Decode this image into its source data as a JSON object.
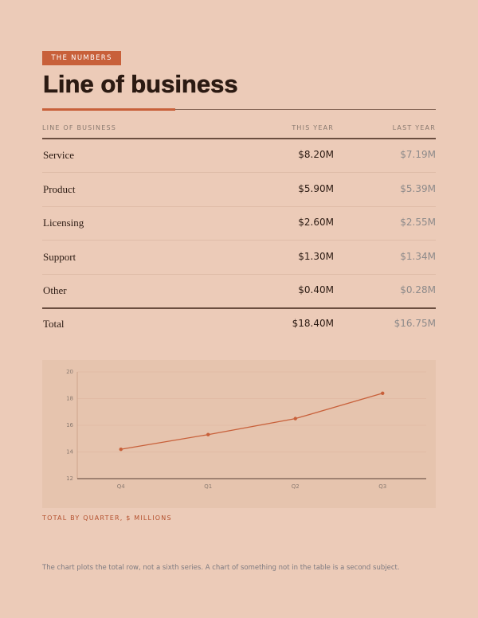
{
  "header": {
    "tag": "THE NUMBERS",
    "title": "Line of business"
  },
  "table": {
    "columns": [
      "LINE OF BUSINESS",
      "THIS YEAR",
      "LAST YEAR"
    ],
    "rows": [
      [
        "Service",
        "$8.20M",
        "$7.19M"
      ],
      [
        "Product",
        "$5.90M",
        "$5.39M"
      ],
      [
        "Licensing",
        "$2.60M",
        "$2.55M"
      ],
      [
        "Support",
        "$1.30M",
        "$1.34M"
      ],
      [
        "Other",
        "$0.40M",
        "$0.28M"
      ]
    ],
    "total": [
      "Total",
      "$18.40M",
      "$16.75M"
    ]
  },
  "chart_data": {
    "type": "line",
    "categories": [
      "Q4",
      "Q1",
      "Q2",
      "Q3"
    ],
    "values": [
      14.2,
      15.3,
      16.5,
      18.4
    ],
    "color": "#c8603a",
    "ylim": [
      12,
      20
    ],
    "yticks": [
      12,
      14,
      16,
      18,
      20
    ],
    "grid": true
  },
  "caption": "TOTAL BY QUARTER, $ MILLIONS",
  "note": "The chart plots the total row, not a sixth series. A chart of something not in the table is a second subject."
}
